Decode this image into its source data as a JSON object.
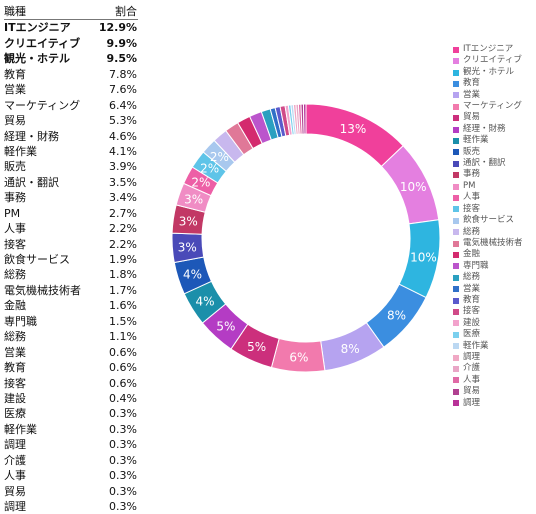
{
  "table": {
    "header": {
      "name": "職種",
      "value": "割合"
    },
    "rows": [
      {
        "name": "ITエンジニア",
        "value": "12.9%",
        "bold": true
      },
      {
        "name": "クリエイティブ",
        "value": "9.9%",
        "bold": true
      },
      {
        "name": "観光・ホテル",
        "value": "9.5%",
        "bold": true
      },
      {
        "name": "教育",
        "value": "7.8%"
      },
      {
        "name": "営業",
        "value": "7.6%"
      },
      {
        "name": "マーケティング",
        "value": "6.4%"
      },
      {
        "name": "貿易",
        "value": "5.3%"
      },
      {
        "name": "経理・財務",
        "value": "4.6%"
      },
      {
        "name": "軽作業",
        "value": "4.1%"
      },
      {
        "name": "販売",
        "value": "3.9%"
      },
      {
        "name": "通訳・翻訳",
        "value": "3.5%"
      },
      {
        "name": "事務",
        "value": "3.4%"
      },
      {
        "name": "PM",
        "value": "2.7%"
      },
      {
        "name": "人事",
        "value": "2.2%"
      },
      {
        "name": "接客",
        "value": "2.2%"
      },
      {
        "name": "飲食サービス",
        "value": "1.9%"
      },
      {
        "name": "総務",
        "value": "1.8%"
      },
      {
        "name": "電気機械技術者",
        "value": "1.7%"
      },
      {
        "name": "金融",
        "value": "1.6%"
      },
      {
        "name": "専門職",
        "value": "1.5%"
      },
      {
        "name": "総務",
        "value": "1.1%"
      },
      {
        "name": "営業",
        "value": "0.6%"
      },
      {
        "name": "教育",
        "value": "0.6%"
      },
      {
        "name": "接客",
        "value": "0.6%"
      },
      {
        "name": "建設",
        "value": "0.4%"
      },
      {
        "name": "医療",
        "value": "0.3%"
      },
      {
        "name": "軽作業",
        "value": "0.3%"
      },
      {
        "name": "調理",
        "value": "0.3%"
      },
      {
        "name": "介護",
        "value": "0.3%"
      },
      {
        "name": "人事",
        "value": "0.3%"
      },
      {
        "name": "貿易",
        "value": "0.3%"
      },
      {
        "name": "調理",
        "value": "0.3%"
      }
    ]
  },
  "chart_data": {
    "type": "pie",
    "donut": true,
    "legend_position": "right",
    "categories": [
      "ITエンジニア",
      "クリエイティブ",
      "観光・ホテル",
      "教育",
      "営業",
      "マーケティング",
      "貿易",
      "経理・財務",
      "軽作業",
      "販売",
      "通訳・翻訳",
      "事務",
      "PM",
      "人事",
      "接客",
      "飲食サービス",
      "総務",
      "電気機械技術者",
      "金融",
      "専門職",
      "総務",
      "営業",
      "教育",
      "接客",
      "建設",
      "医療",
      "軽作業",
      "調理",
      "介護",
      "人事",
      "貿易",
      "調理"
    ],
    "values": [
      12.9,
      9.9,
      9.5,
      7.8,
      7.6,
      6.4,
      5.3,
      4.6,
      4.1,
      3.9,
      3.5,
      3.4,
      2.7,
      2.2,
      2.2,
      1.9,
      1.8,
      1.7,
      1.6,
      1.5,
      1.1,
      0.6,
      0.6,
      0.6,
      0.4,
      0.3,
      0.3,
      0.3,
      0.3,
      0.3,
      0.3,
      0.3
    ],
    "slice_labels": [
      "13%",
      "10%",
      "10%",
      "8%",
      "8%",
      "6%",
      "5%",
      "5%",
      "4%",
      "4%",
      "3%",
      "3%",
      "3%",
      "2%",
      "2%",
      "2%",
      "",
      "",
      "",
      "",
      "",
      "",
      "",
      "",
      "",
      "",
      "",
      "",
      "",
      "",
      "",
      ""
    ],
    "colors": [
      "#f0409b",
      "#e47fe0",
      "#2eb5e0",
      "#3b8ee0",
      "#b6a3f0",
      "#f27aad",
      "#cc2f7c",
      "#b43cc4",
      "#1b8faa",
      "#1d58b8",
      "#4a4ab8",
      "#c23865",
      "#f08cc4",
      "#ed5fa6",
      "#5ec4e8",
      "#a8c8ee",
      "#c8b8ee",
      "#e07898",
      "#d42a6e",
      "#bb55cc",
      "#2aa0c0",
      "#3070c8",
      "#5a5acc",
      "#d04a88",
      "#f2a2cc",
      "#7bd0ee",
      "#bcd8f2",
      "#f0a8c4",
      "#e9a6c6",
      "#e06aa6",
      "#b04090",
      "#b83298"
    ]
  }
}
